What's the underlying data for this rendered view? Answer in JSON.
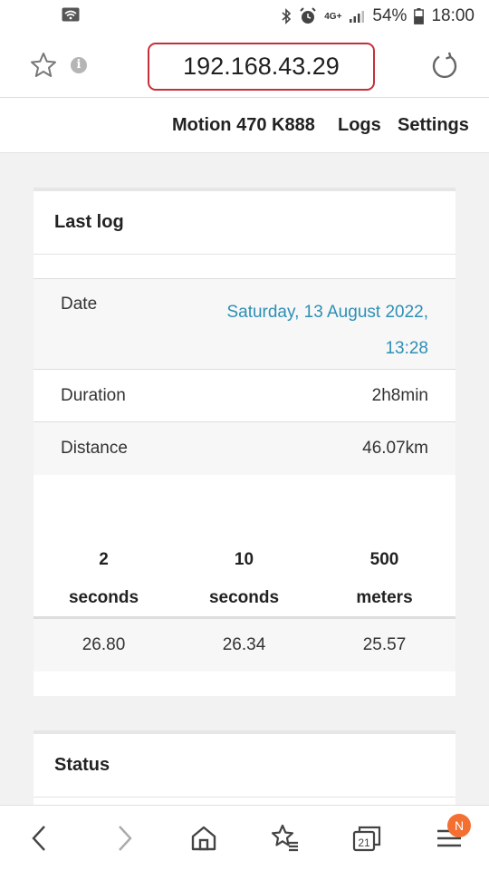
{
  "status_bar": {
    "battery": "54%",
    "time": "18:00",
    "network": "4G+"
  },
  "browser": {
    "url": "192.168.43.29",
    "icons": [
      "star-icon",
      "info-icon",
      "reload-icon"
    ]
  },
  "navbar": {
    "brand": "Motion 470 K888",
    "logs": "Logs",
    "settings": "Settings"
  },
  "last_log": {
    "title": "Last log",
    "date_label": "Date",
    "date_value": "Saturday, 13 August 2022, 13:28",
    "duration_label": "Duration",
    "duration_value": "2h8min",
    "distance_label": "Distance",
    "distance_value": "46.07km",
    "speed_columns": [
      {
        "line1": "2",
        "line2": "seconds",
        "value": "26.80"
      },
      {
        "line1": "10",
        "line2": "seconds",
        "value": "26.34"
      },
      {
        "line1": "500",
        "line2": "meters",
        "value": "25.57"
      }
    ]
  },
  "status_card": {
    "title": "Status"
  },
  "bottom_bar": {
    "tabs_count": "21",
    "menu_badge": "N"
  },
  "colors": {
    "url_border": "#c62f3a",
    "date_link": "#2d8fb5",
    "badge": "#f36f32"
  }
}
